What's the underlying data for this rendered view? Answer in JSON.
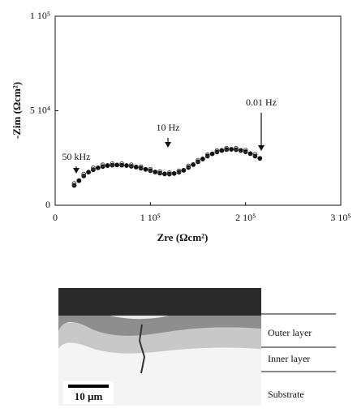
{
  "chart_data": {
    "type": "scatter",
    "x_label": "Zre (Ωcm²)",
    "y_label": "-Zim (Ωcm²)",
    "annotations": [
      "50 kHz",
      "10 Hz",
      "0.01 Hz"
    ],
    "xlim": [
      0,
      300000
    ],
    "ylim": [
      0,
      100000
    ],
    "xticks": [
      0,
      {
        "value": 100000,
        "label": "1 10⁵"
      },
      {
        "value": 200000,
        "label": "2 10⁵"
      },
      {
        "value": 300000,
        "label": "3 10⁵"
      }
    ],
    "yticks": [
      0,
      {
        "value": 50000,
        "label": "5 10⁴"
      },
      {
        "value": 100000,
        "label": "1 10⁵"
      }
    ],
    "series": [
      {
        "marker": "filled",
        "color": "#111111",
        "x": [
          20000,
          25000,
          30000,
          35000,
          40000,
          45000,
          50000,
          55000,
          60000,
          65000,
          70000,
          75000,
          80000,
          85000,
          90000,
          95000,
          100000,
          105000,
          110000,
          115000,
          120000,
          125000,
          130000,
          135000,
          140000,
          145000,
          150000,
          155000,
          160000,
          165000,
          170000,
          175000,
          180000,
          185000,
          190000,
          195000,
          200000,
          205000,
          210000,
          215000
        ],
        "values": [
          10500,
          13000,
          15500,
          17500,
          18800,
          19800,
          20500,
          21000,
          21200,
          21300,
          21200,
          21000,
          20600,
          20200,
          19600,
          19000,
          18300,
          17600,
          17000,
          16600,
          16500,
          16800,
          17500,
          18500,
          20000,
          21500,
          23000,
          24500,
          26000,
          27200,
          28200,
          29000,
          29500,
          29600,
          29400,
          29000,
          28300,
          27300,
          26000,
          24800
        ]
      },
      {
        "marker": "open",
        "color": "#444444",
        "x": [
          20000,
          30000,
          40000,
          50000,
          60000,
          70000,
          80000,
          90000,
          100000,
          110000,
          120000,
          130000,
          140000,
          150000,
          160000,
          170000,
          180000,
          190000,
          200000,
          210000
        ],
        "values": [
          11500,
          16500,
          19800,
          21400,
          22000,
          22000,
          21400,
          20400,
          19000,
          17800,
          17200,
          18200,
          20800,
          23800,
          26700,
          28900,
          30200,
          30200,
          29100,
          27000
        ]
      }
    ]
  },
  "micrograph": {
    "scale_bar": "10 µm",
    "layers": [
      "Outer layer",
      "Inner layer",
      "Substrate"
    ]
  }
}
